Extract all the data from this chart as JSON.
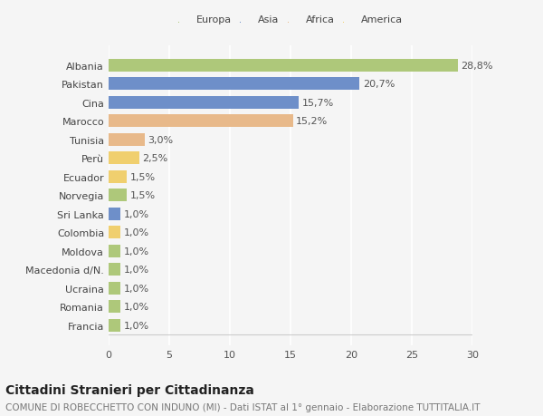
{
  "categories": [
    "Albania",
    "Pakistan",
    "Cina",
    "Marocco",
    "Tunisia",
    "Perù",
    "Ecuador",
    "Norvegia",
    "Sri Lanka",
    "Colombia",
    "Moldova",
    "Macedonia d/N.",
    "Ucraina",
    "Romania",
    "Francia"
  ],
  "values": [
    28.8,
    20.7,
    15.7,
    15.2,
    3.0,
    2.5,
    1.5,
    1.5,
    1.0,
    1.0,
    1.0,
    1.0,
    1.0,
    1.0,
    1.0
  ],
  "labels": [
    "28,8%",
    "20,7%",
    "15,7%",
    "15,2%",
    "3,0%",
    "2,5%",
    "1,5%",
    "1,5%",
    "1,0%",
    "1,0%",
    "1,0%",
    "1,0%",
    "1,0%",
    "1,0%",
    "1,0%"
  ],
  "colors": [
    "#aec87a",
    "#6e8fc9",
    "#6e8fc9",
    "#e8b98a",
    "#e8b98a",
    "#f0cf6e",
    "#f0cf6e",
    "#aec87a",
    "#6e8fc9",
    "#f0cf6e",
    "#aec87a",
    "#aec87a",
    "#aec87a",
    "#aec87a",
    "#aec87a"
  ],
  "legend_labels": [
    "Europa",
    "Asia",
    "Africa",
    "America"
  ],
  "legend_colors": [
    "#aec87a",
    "#6e8fc9",
    "#e8b98a",
    "#f0cf6e"
  ],
  "title": "Cittadini Stranieri per Cittadinanza",
  "subtitle": "COMUNE DI ROBECCHETTO CON INDUNO (MI) - Dati ISTAT al 1° gennaio - Elaborazione TUTTITALIA.IT",
  "xlim": [
    0,
    30
  ],
  "xticks": [
    0,
    5,
    10,
    15,
    20,
    25,
    30
  ],
  "background_color": "#f5f5f5",
  "grid_color": "#ffffff",
  "bar_height": 0.68,
  "title_fontsize": 10,
  "subtitle_fontsize": 7.5,
  "tick_fontsize": 8,
  "label_fontsize": 8
}
